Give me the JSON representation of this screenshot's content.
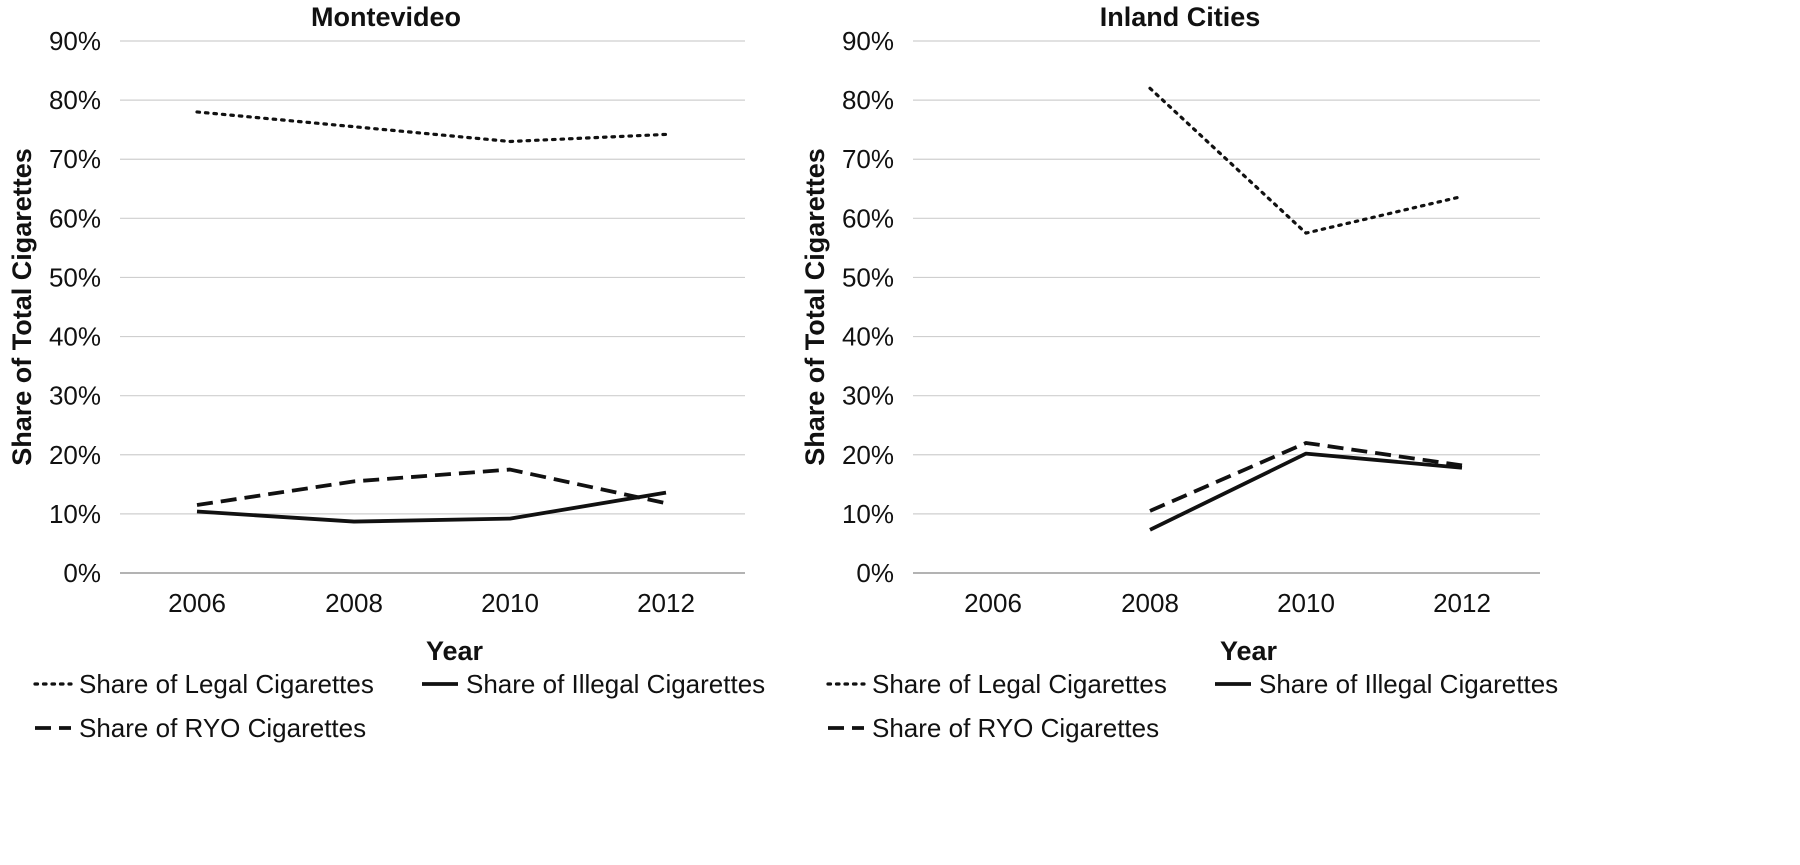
{
  "chart_data": [
    {
      "type": "line",
      "title": "Montevideo",
      "xlabel": "Year",
      "ylabel": "Share of Total Cigarettes",
      "categories": [
        "2006",
        "2008",
        "2010",
        "2012"
      ],
      "ylim": [
        0,
        90
      ],
      "yticks": [
        "0%",
        "10%",
        "20%",
        "30%",
        "40%",
        "50%",
        "60%",
        "70%",
        "80%",
        "90%"
      ],
      "grid": true,
      "legend_position": "bottom",
      "series": [
        {
          "name": "Share of Legal Cigarettes",
          "style": "dotted",
          "values": [
            78,
            75.5,
            73,
            74.2
          ]
        },
        {
          "name": "Share of Illegal Cigarettes",
          "style": "solid",
          "values": [
            10.4,
            8.7,
            9.2,
            13.6
          ]
        },
        {
          "name": "Share of RYO Cigarettes",
          "style": "dashed",
          "values": [
            11.5,
            15.5,
            17.5,
            11.8
          ]
        }
      ]
    },
    {
      "type": "line",
      "title": "Inland Cities",
      "xlabel": "Year",
      "ylabel": "Share of Total Cigarettes",
      "categories": [
        "2006",
        "2008",
        "2010",
        "2012"
      ],
      "ylim": [
        0,
        90
      ],
      "yticks": [
        "0%",
        "10%",
        "20%",
        "30%",
        "40%",
        "50%",
        "60%",
        "70%",
        "80%",
        "90%"
      ],
      "grid": true,
      "legend_position": "bottom",
      "series": [
        {
          "name": "Share of Legal Cigarettes",
          "style": "dotted",
          "values": [
            null,
            82,
            57.5,
            63.7
          ]
        },
        {
          "name": "Share of Illegal Cigarettes",
          "style": "solid",
          "values": [
            null,
            7.3,
            20.2,
            17.8
          ]
        },
        {
          "name": "Share of RYO Cigarettes",
          "style": "dashed",
          "values": [
            null,
            10.5,
            22,
            18.2
          ]
        }
      ]
    }
  ]
}
